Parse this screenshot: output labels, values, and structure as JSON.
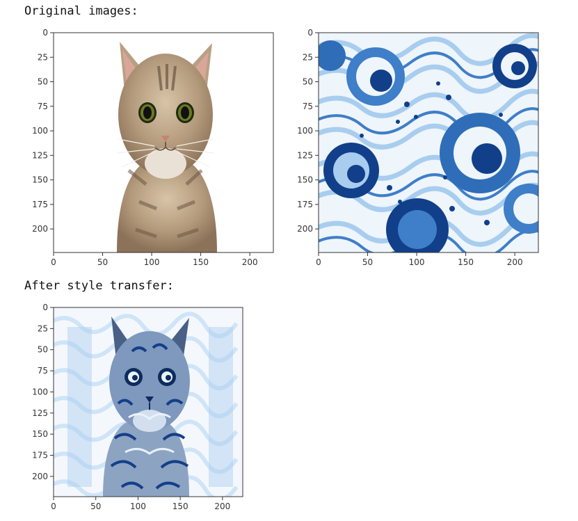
{
  "output": {
    "original_label": "Original images:",
    "after_label": "After style transfer:"
  },
  "axes": {
    "y_ticks": [
      "0",
      "25",
      "50",
      "75",
      "100",
      "125",
      "150",
      "175",
      "200"
    ],
    "x_ticks": [
      "0",
      "50",
      "100",
      "150",
      "200"
    ]
  },
  "colors": {
    "cat_fur": "#b49a7c",
    "cat_dark": "#6b5644",
    "wave_dark": "#123f8a",
    "wave_mid": "#3f7ec8",
    "wave_light": "#a8cdee",
    "styled_light": "#cfe4f7"
  }
}
